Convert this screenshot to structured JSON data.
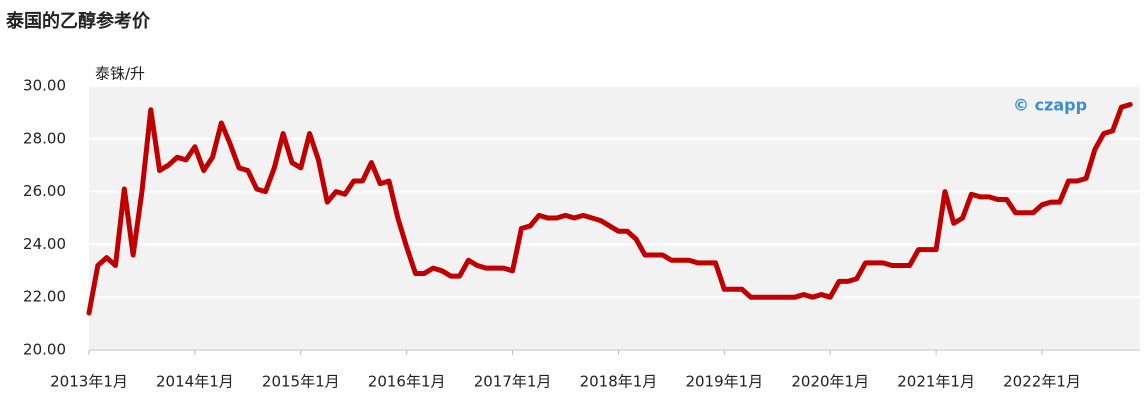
{
  "chart_data": {
    "type": "line",
    "title": "泰国的乙醇参考价",
    "y_label": "泰铢/升",
    "watermark": "© czapp",
    "categories": [
      "2013年1月",
      null,
      null,
      null,
      null,
      null,
      null,
      null,
      null,
      null,
      null,
      null,
      "2014年1月",
      null,
      null,
      null,
      null,
      null,
      null,
      null,
      null,
      null,
      null,
      null,
      "2015年1月",
      null,
      null,
      null,
      null,
      null,
      null,
      null,
      null,
      null,
      null,
      null,
      "2016年1月",
      null,
      null,
      null,
      null,
      null,
      null,
      null,
      null,
      null,
      null,
      null,
      "2017年1月",
      null,
      null,
      null,
      null,
      null,
      null,
      null,
      null,
      null,
      null,
      null,
      "2018年1月",
      null,
      null,
      null,
      null,
      null,
      null,
      null,
      null,
      null,
      null,
      null,
      "2019年1月",
      null,
      null,
      null,
      null,
      null,
      null,
      null,
      null,
      null,
      null,
      null,
      "2020年1月",
      null,
      null,
      null,
      null,
      null,
      null,
      null,
      null,
      null,
      null,
      null,
      "2021年1月",
      null,
      null,
      null,
      null,
      null,
      null,
      null,
      null,
      null,
      null,
      null,
      "2022年1月",
      null,
      null,
      null,
      null,
      null,
      null,
      null,
      null,
      null,
      null
    ],
    "values": [
      21.4,
      23.2,
      23.5,
      23.2,
      26.1,
      23.6,
      26.0,
      29.1,
      26.8,
      27.0,
      27.3,
      27.2,
      27.7,
      26.8,
      27.3,
      28.6,
      27.8,
      26.9,
      26.8,
      26.1,
      26.0,
      26.9,
      28.2,
      27.1,
      26.9,
      28.2,
      27.2,
      25.6,
      26.0,
      25.9,
      26.4,
      26.4,
      27.1,
      26.3,
      26.4,
      25.0,
      23.9,
      22.9,
      22.9,
      23.1,
      23.0,
      22.8,
      22.8,
      23.4,
      23.2,
      23.1,
      23.1,
      23.1,
      23.0,
      24.6,
      24.7,
      25.1,
      25.0,
      25.0,
      25.1,
      25.0,
      25.1,
      25.0,
      24.9,
      24.7,
      24.5,
      24.5,
      24.2,
      23.6,
      23.6,
      23.6,
      23.4,
      23.4,
      23.4,
      23.3,
      23.3,
      23.3,
      22.3,
      22.3,
      22.3,
      22.0,
      22.0,
      22.0,
      22.0,
      22.0,
      22.0,
      22.1,
      22.0,
      22.1,
      22.0,
      22.6,
      22.6,
      22.7,
      23.3,
      23.3,
      23.3,
      23.2,
      23.2,
      23.2,
      23.8,
      23.8,
      23.8,
      26.0,
      24.8,
      25.0,
      25.9,
      25.8,
      25.8,
      25.7,
      25.7,
      25.2,
      25.2,
      25.2,
      25.5,
      25.6,
      25.6,
      26.4,
      26.4,
      26.5,
      27.6,
      28.2,
      28.3,
      29.2,
      29.3
    ],
    "color": "#c00000",
    "ylim": [
      20,
      30
    ],
    "yticks": [
      {
        "value": 20,
        "label": "20.00"
      },
      {
        "value": 22,
        "label": "22.00"
      },
      {
        "value": 24,
        "label": "24.00"
      },
      {
        "value": 26,
        "label": "26.00"
      },
      {
        "value": 28,
        "label": "28.00"
      },
      {
        "value": 30,
        "label": "30.00"
      }
    ],
    "grid": true
  }
}
